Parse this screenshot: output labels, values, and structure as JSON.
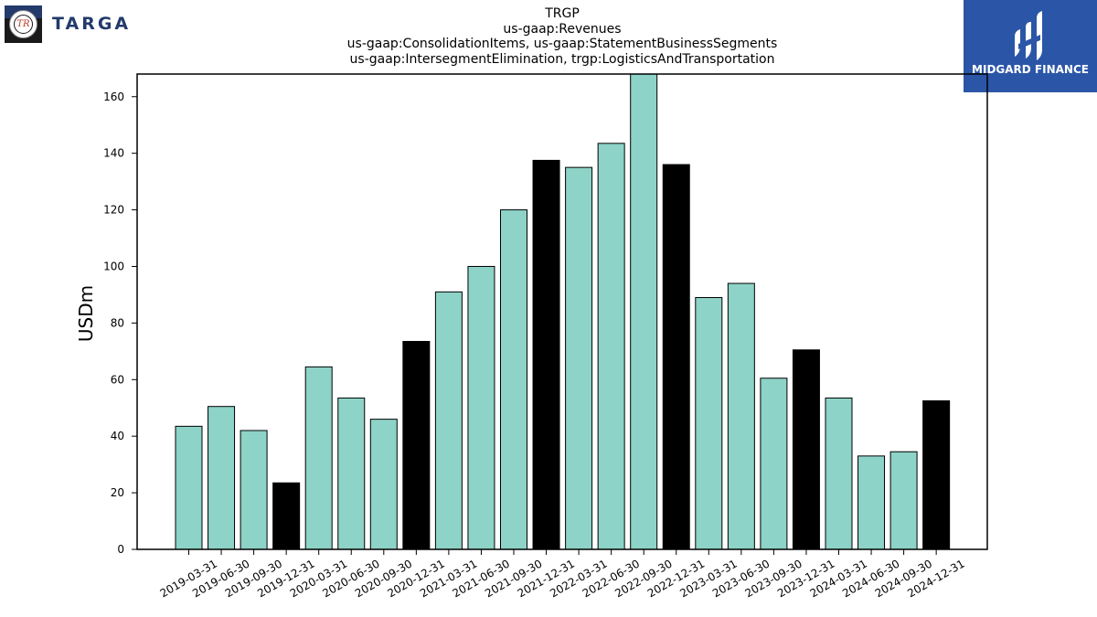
{
  "branding": {
    "left_logo_text": "TARGA",
    "left_logo_monogram": "TR",
    "right_logo_text": "MIDGARD FINANCE"
  },
  "chart_data": {
    "type": "bar",
    "title_lines": [
      "TRGP",
      "us-gaap:Revenues",
      "us-gaap:ConsolidationItems, us-gaap:StatementBusinessSegments",
      "us-gaap:IntersegmentElimination, trgp:LogisticsAndTransportation"
    ],
    "xlabel": "",
    "ylabel": "USDm",
    "ylim": [
      0,
      168
    ],
    "yticks": [
      0,
      20,
      40,
      60,
      80,
      100,
      120,
      140,
      160
    ],
    "grid": false,
    "categories": [
      "2019-03-31",
      "2019-06-30",
      "2019-09-30",
      "2019-12-31",
      "2020-03-31",
      "2020-06-30",
      "2020-09-30",
      "2020-12-31",
      "2021-03-31",
      "2021-06-30",
      "2021-09-30",
      "2021-12-31",
      "2022-03-31",
      "2022-06-30",
      "2022-09-30",
      "2022-12-31",
      "2023-03-31",
      "2023-06-30",
      "2023-09-30",
      "2023-12-31",
      "2024-03-31",
      "2024-06-30",
      "2024-09-30",
      "2024-12-31"
    ],
    "values": [
      43.5,
      50.5,
      42,
      23.5,
      64.5,
      53.5,
      46,
      73.5,
      91,
      100,
      120,
      137.5,
      135,
      143.5,
      168,
      136,
      89,
      94,
      60.5,
      70.5,
      53.5,
      33,
      34.5,
      52.5
    ],
    "colors": {
      "quarter": "#8dd3c7",
      "year_end": "#000000",
      "edge": "#000000"
    }
  }
}
